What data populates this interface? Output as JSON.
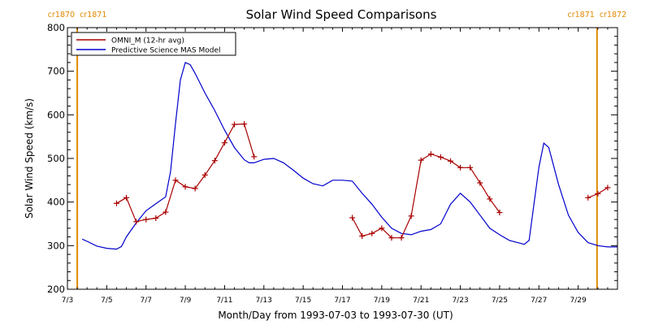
{
  "chart_data": {
    "type": "line",
    "title": "Solar Wind Speed Comparisons",
    "xlabel": "Month/Day from 1993-07-03 to 1993-07-30 (UT)",
    "ylabel": "Solar Wind Speed (km/s)",
    "xlim": [
      "1993-07-03",
      "1993-07-30"
    ],
    "ylim": [
      200,
      800
    ],
    "yticks": [
      "200",
      "300",
      "400",
      "500",
      "600",
      "700",
      "800"
    ],
    "xticks": [
      {
        "date": "1993-07-03",
        "label": "7/3"
      },
      {
        "date": "1993-07-05",
        "label": "7/5"
      },
      {
        "date": "1993-07-07",
        "label": "7/7"
      },
      {
        "date": "1993-07-09",
        "label": "7/9"
      },
      {
        "date": "1993-07-11",
        "label": "7/11"
      },
      {
        "date": "1993-07-13",
        "label": "7/13"
      },
      {
        "date": "1993-07-15",
        "label": "7/15"
      },
      {
        "date": "1993-07-17",
        "label": "7/17"
      },
      {
        "date": "1993-07-19",
        "label": "7/19"
      },
      {
        "date": "1993-07-21",
        "label": "7/21"
      },
      {
        "date": "1993-07-23",
        "label": "7/23"
      },
      {
        "date": "1993-07-25",
        "label": "7/25"
      },
      {
        "date": "1993-07-27",
        "label": "7/27"
      },
      {
        "date": "1993-07-29",
        "label": "7/29"
      }
    ],
    "carrington_markers": [
      {
        "date": "1993-07-03 12:00",
        "left_label": "cr1870",
        "right_label": "cr1871",
        "color": "#e08a00"
      },
      {
        "date": "1993-07-29 23:00",
        "left_label": "cr1871",
        "right_label": "cr1872",
        "color": "#e08a00"
      }
    ],
    "legend_position": "top-left",
    "grid": false,
    "series": [
      {
        "name": "OMNI_M (12-hr avg)",
        "color": "#aa0000",
        "marker": "plus",
        "segments": [
          [
            [
              "1993-07-05 12:00",
              397
            ],
            [
              "1993-07-06 00:00",
              410
            ],
            [
              "1993-07-06 12:00",
              355
            ],
            [
              "1993-07-07 00:00",
              360
            ],
            [
              "1993-07-07 12:00",
              363
            ],
            [
              "1993-07-08 00:00",
              377
            ],
            [
              "1993-07-08 12:00",
              450
            ],
            [
              "1993-07-09 00:00",
              435
            ],
            [
              "1993-07-09 12:00",
              431
            ],
            [
              "1993-07-10 00:00",
              462
            ],
            [
              "1993-07-10 12:00",
              495
            ],
            [
              "1993-07-11 00:00",
              536
            ],
            [
              "1993-07-11 12:00",
              578
            ],
            [
              "1993-07-12 00:00",
              579
            ],
            [
              "1993-07-12 12:00",
              504
            ]
          ],
          [
            [
              "1993-07-17 12:00",
              364
            ],
            [
              "1993-07-18 00:00",
              322
            ],
            [
              "1993-07-18 12:00",
              328
            ],
            [
              "1993-07-19 00:00",
              340
            ],
            [
              "1993-07-19 12:00",
              318
            ],
            [
              "1993-07-20 00:00",
              318
            ],
            [
              "1993-07-20 12:00",
              368
            ],
            [
              "1993-07-21 00:00",
              496
            ],
            [
              "1993-07-21 12:00",
              510
            ],
            [
              "1993-07-22 00:00",
              503
            ],
            [
              "1993-07-22 12:00",
              494
            ],
            [
              "1993-07-23 00:00",
              479
            ],
            [
              "1993-07-23 12:00",
              479
            ],
            [
              "1993-07-24 00:00",
              444
            ],
            [
              "1993-07-24 12:00",
              407
            ],
            [
              "1993-07-25 00:00",
              376
            ]
          ],
          [
            [
              "1993-07-29 12:00",
              410
            ],
            [
              "1993-07-30 00:00",
              419
            ],
            [
              "1993-07-30 12:00",
              433
            ]
          ]
        ]
      },
      {
        "name": "Predictive Science MAS Model",
        "color": "#0000cc",
        "marker": "none",
        "points": [
          [
            "1993-07-03 18:00",
            315
          ],
          [
            "1993-07-04 00:00",
            310
          ],
          [
            "1993-07-04 12:00",
            299
          ],
          [
            "1993-07-05 00:00",
            294
          ],
          [
            "1993-07-05 12:00",
            292
          ],
          [
            "1993-07-05 18:00",
            298
          ],
          [
            "1993-07-06 00:00",
            320
          ],
          [
            "1993-07-06 12:00",
            352
          ],
          [
            "1993-07-07 00:00",
            380
          ],
          [
            "1993-07-07 12:00",
            396
          ],
          [
            "1993-07-08 00:00",
            412
          ],
          [
            "1993-07-08 06:00",
            470
          ],
          [
            "1993-07-08 12:00",
            580
          ],
          [
            "1993-07-08 18:00",
            680
          ],
          [
            "1993-07-09 00:00",
            720
          ],
          [
            "1993-07-09 06:00",
            715
          ],
          [
            "1993-07-09 12:00",
            695
          ],
          [
            "1993-07-10 00:00",
            650
          ],
          [
            "1993-07-10 12:00",
            610
          ],
          [
            "1993-07-11 00:00",
            565
          ],
          [
            "1993-07-11 12:00",
            525
          ],
          [
            "1993-07-12 00:00",
            497
          ],
          [
            "1993-07-12 06:00",
            490
          ],
          [
            "1993-07-12 12:00",
            490
          ],
          [
            "1993-07-13 00:00",
            498
          ],
          [
            "1993-07-13 12:00",
            500
          ],
          [
            "1993-07-14 00:00",
            490
          ],
          [
            "1993-07-14 12:00",
            473
          ],
          [
            "1993-07-15 00:00",
            455
          ],
          [
            "1993-07-15 12:00",
            442
          ],
          [
            "1993-07-16 00:00",
            437
          ],
          [
            "1993-07-16 12:00",
            450
          ],
          [
            "1993-07-17 00:00",
            450
          ],
          [
            "1993-07-17 12:00",
            448
          ],
          [
            "1993-07-18 00:00",
            420
          ],
          [
            "1993-07-18 12:00",
            395
          ],
          [
            "1993-07-19 00:00",
            365
          ],
          [
            "1993-07-19 12:00",
            340
          ],
          [
            "1993-07-20 00:00",
            328
          ],
          [
            "1993-07-20 12:00",
            325
          ],
          [
            "1993-07-21 00:00",
            333
          ],
          [
            "1993-07-21 12:00",
            337
          ],
          [
            "1993-07-22 00:00",
            350
          ],
          [
            "1993-07-22 12:00",
            395
          ],
          [
            "1993-07-23 00:00",
            420
          ],
          [
            "1993-07-23 12:00",
            400
          ],
          [
            "1993-07-24 00:00",
            370
          ],
          [
            "1993-07-24 12:00",
            340
          ],
          [
            "1993-07-25 00:00",
            325
          ],
          [
            "1993-07-25 12:00",
            312
          ],
          [
            "1993-07-26 00:00",
            306
          ],
          [
            "1993-07-26 06:00",
            303
          ],
          [
            "1993-07-26 12:00",
            312
          ],
          [
            "1993-07-27 00:00",
            480
          ],
          [
            "1993-07-27 06:00",
            535
          ],
          [
            "1993-07-27 12:00",
            525
          ],
          [
            "1993-07-28 00:00",
            440
          ],
          [
            "1993-07-28 12:00",
            370
          ],
          [
            "1993-07-29 00:00",
            330
          ],
          [
            "1993-07-29 12:00",
            307
          ],
          [
            "1993-07-30 00:00",
            300
          ],
          [
            "1993-07-30 12:00",
            297
          ],
          [
            "1993-07-31 00:00",
            297
          ]
        ]
      }
    ]
  }
}
